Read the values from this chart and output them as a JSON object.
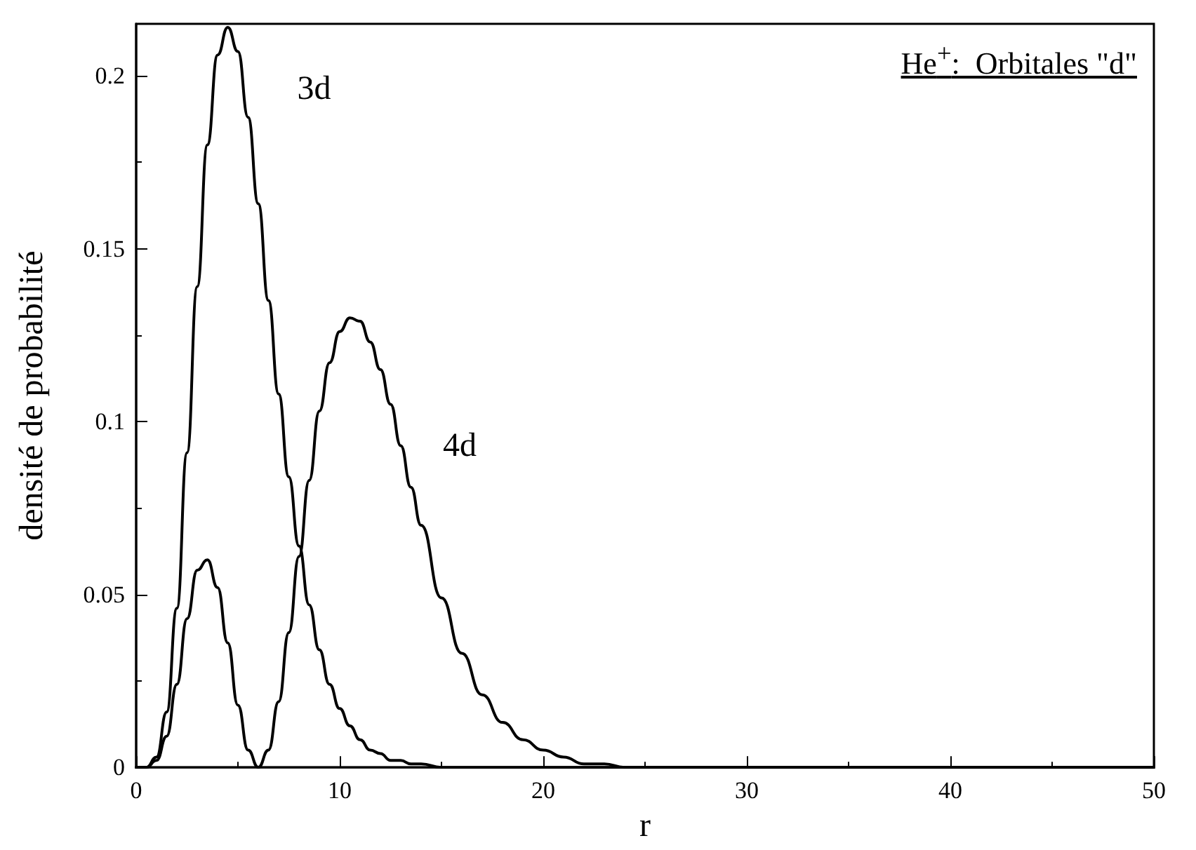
{
  "chart_data": {
    "type": "line",
    "title": "He$^{+}$:  Orbitales \"d\"",
    "xlabel": "r",
    "ylabel": "densité de probabilité",
    "x": [
      0,
      0.5,
      1,
      1.5,
      2,
      2.5,
      3,
      3.5,
      4,
      4.5,
      5,
      5.5,
      6,
      6.5,
      7,
      7.5,
      8,
      8.5,
      9,
      9.5,
      10,
      10.5,
      11,
      11.5,
      12,
      12.5,
      13,
      13.5,
      14,
      15,
      16,
      17,
      18,
      19,
      20,
      21,
      22,
      23,
      24,
      26,
      28,
      30,
      40,
      50
    ],
    "series": [
      {
        "name": "3d",
        "color": "#000000",
        "values": [
          0,
          0,
          0.003,
          0.016,
          0.046,
          0.091,
          0.139,
          0.18,
          0.206,
          0.214,
          0.207,
          0.188,
          0.163,
          0.135,
          0.108,
          0.084,
          0.064,
          0.047,
          0.034,
          0.024,
          0.017,
          0.012,
          0.008,
          0.005,
          0.004,
          0.002,
          0.002,
          0.001,
          0.001,
          0,
          0,
          0,
          0,
          0,
          0,
          0,
          0,
          0,
          0,
          0,
          0,
          0,
          0,
          0
        ]
      },
      {
        "name": "4d",
        "color": "#000000",
        "values": [
          0,
          0,
          0.002,
          0.009,
          0.024,
          0.043,
          0.057,
          0.06,
          0.052,
          0.036,
          0.018,
          0.005,
          0,
          0.005,
          0.019,
          0.039,
          0.061,
          0.083,
          0.103,
          0.117,
          0.126,
          0.13,
          0.129,
          0.123,
          0.115,
          0.105,
          0.093,
          0.081,
          0.07,
          0.049,
          0.033,
          0.021,
          0.013,
          0.008,
          0.005,
          0.003,
          0.001,
          0.001,
          0,
          0,
          0,
          0,
          0,
          0
        ]
      }
    ],
    "xlim": [
      0,
      50
    ],
    "xticks": [
      0,
      10,
      20,
      30,
      40,
      50
    ],
    "ylim": [
      0,
      0.215
    ],
    "yticks": [
      0,
      0.05,
      0.1,
      0.15,
      0.2
    ],
    "grid": false,
    "legend": false,
    "marker": "none",
    "line_style": "solid"
  }
}
